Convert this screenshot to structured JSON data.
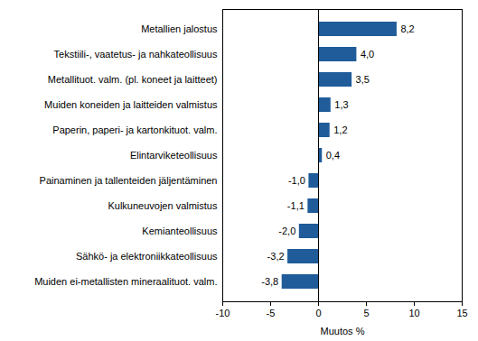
{
  "chart_data": {
    "type": "bar",
    "orientation": "horizontal",
    "categories": [
      "Metallien jalostus",
      "Tekstiili-, vaatetus- ja nahkateollisuus",
      "Metallituot. valm. (pl. koneet ja laitteet)",
      "Muiden koneiden ja laitteiden valmistus",
      "Paperin, paperi- ja kartonkituot. valm.",
      "Elintarviketeollisuus",
      "Painaminen ja tallenteiden jäljentäminen",
      "Kulkuneuvojen valmistus",
      "Kemianteollisuus",
      "Sähkö- ja elektroniikkateollisuus",
      "Muiden ei-metallisten mineraalituot. valm."
    ],
    "values": [
      8.2,
      4.0,
      3.5,
      1.3,
      1.2,
      0.4,
      -1.0,
      -1.1,
      -2.0,
      -3.2,
      -3.8
    ],
    "value_labels": [
      "8,2",
      "4,0",
      "3,5",
      "1,3",
      "1,2",
      "0,4",
      "-1,0",
      "-1,1",
      "-2,0",
      "-3,2",
      "-3,8"
    ],
    "data_labels": true,
    "color": "#1f5c99",
    "x_label": "Muutos %",
    "xlim": [
      -10,
      15
    ],
    "xticks": [
      -10,
      -5,
      0,
      5,
      10,
      15
    ],
    "grid": false
  }
}
